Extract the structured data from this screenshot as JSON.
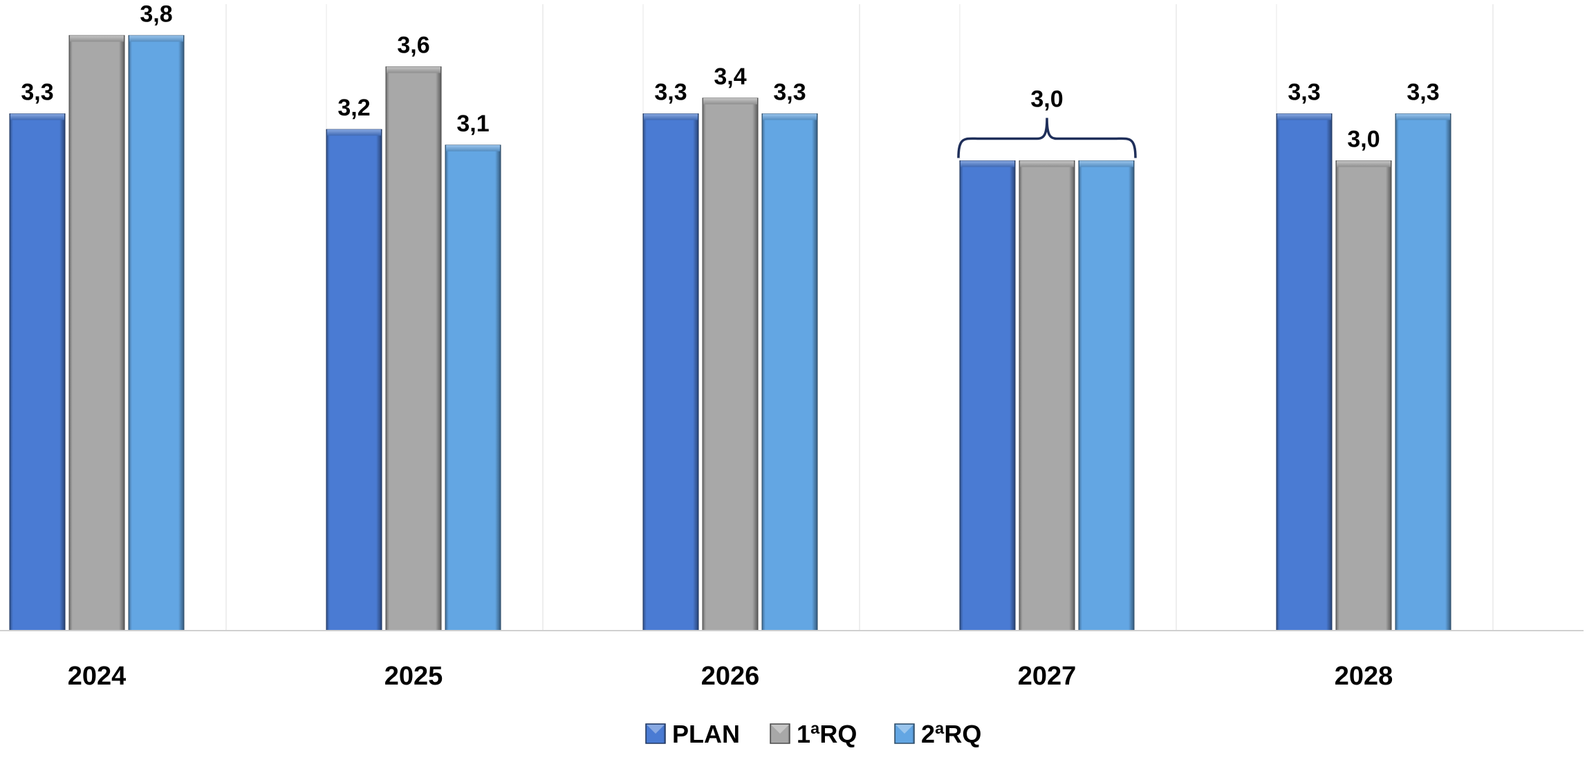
{
  "chart_data": {
    "type": "bar",
    "categories": [
      "2024",
      "2025",
      "2026",
      "2027",
      "2028"
    ],
    "series": [
      {
        "name": "PLAN",
        "values": [
          3.3,
          3.2,
          3.3,
          3.0,
          3.3
        ],
        "labels": [
          "3,3",
          "3,2",
          "3,3",
          "",
          "3,3"
        ],
        "color": "#4A7BD3"
      },
      {
        "name": "1ªRQ",
        "values": [
          3.8,
          3.6,
          3.4,
          3.0,
          3.0
        ],
        "labels": [
          "",
          "3,6",
          "3,4",
          "",
          "3,0"
        ],
        "color": "#A8A8A8"
      },
      {
        "name": "2ªRQ",
        "values": [
          3.8,
          3.1,
          3.3,
          3.0,
          3.3
        ],
        "labels": [
          "3,8",
          "3,1",
          "3,3",
          "",
          "3,3"
        ],
        "color": "#63A6E3"
      }
    ],
    "group_annotations": [
      {
        "category": "2027",
        "label": "3,0",
        "style": "brace"
      }
    ],
    "title": "",
    "xlabel": "",
    "ylabel": "",
    "ylim": [
      0,
      4.0
    ],
    "gridlines": "vertical",
    "legend": "bottom-center"
  }
}
